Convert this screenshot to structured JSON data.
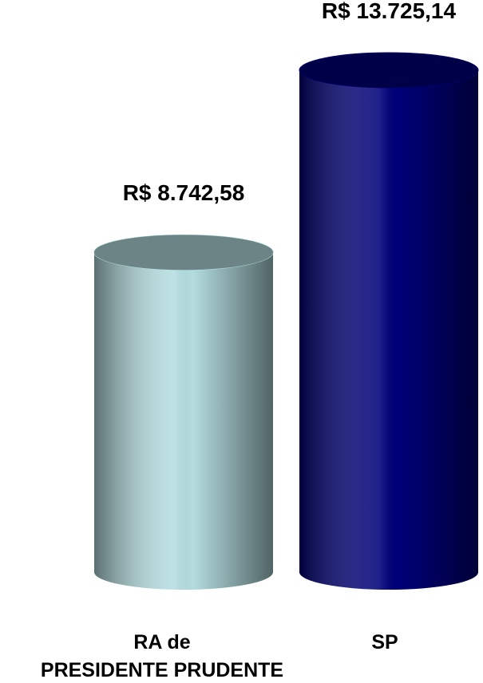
{
  "chart_data": {
    "type": "cylinder",
    "categories": [
      "RA de\nPRESIDENTE PRUDENTE",
      "SP"
    ],
    "values": [
      8742.58,
      13725.14
    ],
    "value_labels": [
      "R$ 8.742,58",
      "R$ 13.725,14"
    ],
    "colors": [
      "#b4dde0",
      "#00007a"
    ]
  }
}
